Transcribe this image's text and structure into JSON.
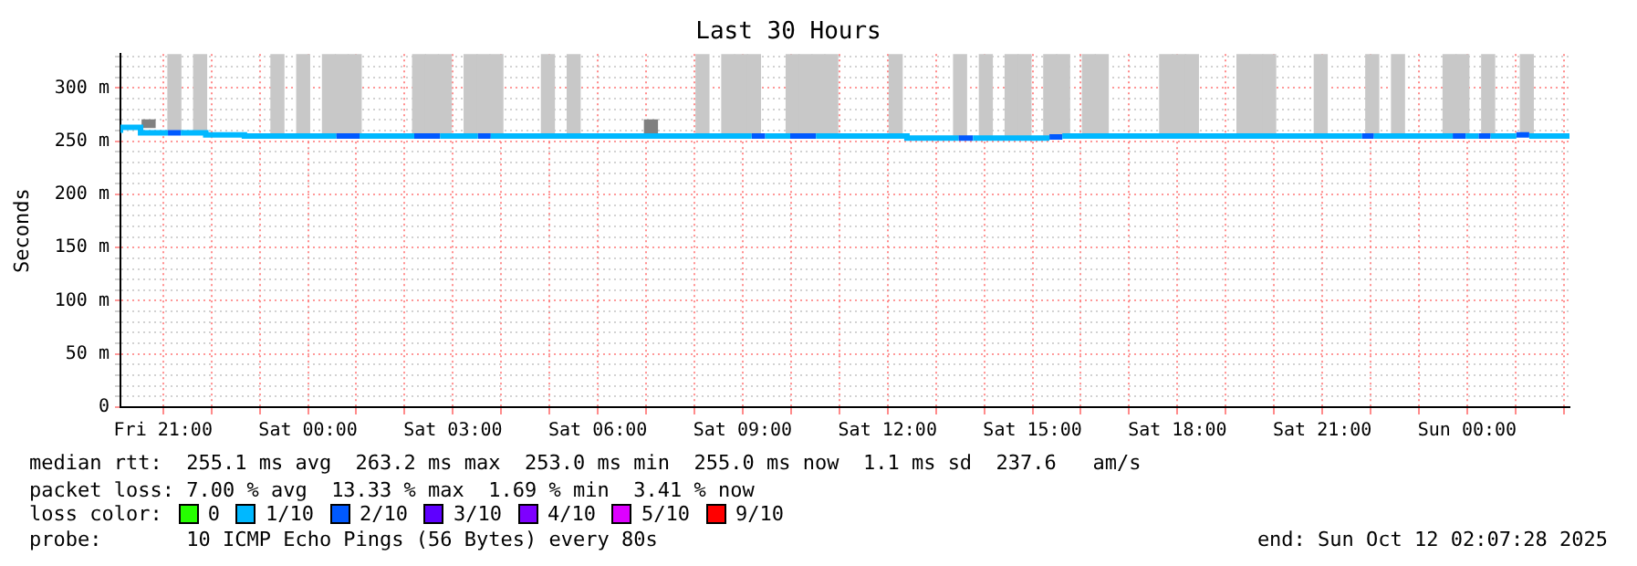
{
  "chart_data": {
    "type": "step",
    "title": "Last 30 Hours",
    "ylabel": "Seconds",
    "legend_title": "loss color:",
    "legend": "bottom",
    "grid": true,
    "line_style": "solid",
    "marker": "none",
    "xlim": [
      "2025-10-10T20:07",
      "2025-10-12T02:07"
    ],
    "xticks": [
      {
        "value": "2025-10-10T21:00",
        "label": "Fri 21:00"
      },
      {
        "value": "2025-10-10T22:00",
        "label": null
      },
      {
        "value": "2025-10-10T23:00",
        "label": null
      },
      {
        "value": "2025-10-11T00:00",
        "label": "Sat 00:00"
      },
      {
        "value": "2025-10-11T01:00",
        "label": null
      },
      {
        "value": "2025-10-11T02:00",
        "label": null
      },
      {
        "value": "2025-10-11T03:00",
        "label": "Sat 03:00"
      },
      {
        "value": "2025-10-11T04:00",
        "label": null
      },
      {
        "value": "2025-10-11T05:00",
        "label": null
      },
      {
        "value": "2025-10-11T06:00",
        "label": "Sat 06:00"
      },
      {
        "value": "2025-10-11T07:00",
        "label": null
      },
      {
        "value": "2025-10-11T08:00",
        "label": null
      },
      {
        "value": "2025-10-11T09:00",
        "label": "Sat 09:00"
      },
      {
        "value": "2025-10-11T10:00",
        "label": null
      },
      {
        "value": "2025-10-11T11:00",
        "label": null
      },
      {
        "value": "2025-10-11T12:00",
        "label": "Sat 12:00"
      },
      {
        "value": "2025-10-11T13:00",
        "label": null
      },
      {
        "value": "2025-10-11T14:00",
        "label": null
      },
      {
        "value": "2025-10-11T15:00",
        "label": "Sat 15:00"
      },
      {
        "value": "2025-10-11T16:00",
        "label": null
      },
      {
        "value": "2025-10-11T17:00",
        "label": null
      },
      {
        "value": "2025-10-11T18:00",
        "label": "Sat 18:00"
      },
      {
        "value": "2025-10-11T19:00",
        "label": null
      },
      {
        "value": "2025-10-11T20:00",
        "label": null
      },
      {
        "value": "2025-10-11T21:00",
        "label": "Sat 21:00"
      },
      {
        "value": "2025-10-11T22:00",
        "label": null
      },
      {
        "value": "2025-10-11T23:00",
        "label": null
      },
      {
        "value": "2025-10-12T00:00",
        "label": "Sun 00:00"
      },
      {
        "value": "2025-10-12T01:00",
        "label": null
      },
      {
        "value": "2025-10-12T02:00",
        "label": null
      }
    ],
    "ylim": [
      0,
      332
    ],
    "yticks": [
      0,
      {
        "value": 10,
        "label": null
      },
      {
        "value": 20,
        "label": null
      },
      {
        "value": 30,
        "label": null
      },
      {
        "value": 40,
        "label": null
      },
      {
        "value": 50,
        "label": "50 m"
      },
      {
        "value": 60,
        "label": null
      },
      {
        "value": 70,
        "label": null
      },
      {
        "value": 80,
        "label": null
      },
      {
        "value": 90,
        "label": null
      },
      {
        "value": 100,
        "label": "100 m"
      },
      {
        "value": 110,
        "label": null
      },
      {
        "value": 120,
        "label": null
      },
      {
        "value": 130,
        "label": null
      },
      {
        "value": 140,
        "label": null
      },
      {
        "value": 150,
        "label": "150 m"
      },
      {
        "value": 160,
        "label": null
      },
      {
        "value": 170,
        "label": null
      },
      {
        "value": 180,
        "label": null
      },
      {
        "value": 190,
        "label": null
      },
      {
        "value": 200,
        "label": "200 m"
      },
      {
        "value": 210,
        "label": null
      },
      {
        "value": 220,
        "label": null
      },
      {
        "value": 230,
        "label": null
      },
      {
        "value": 240,
        "label": null
      },
      {
        "value": 250,
        "label": "250 m"
      },
      {
        "value": 260,
        "label": null
      },
      {
        "value": 270,
        "label": null
      },
      {
        "value": 280,
        "label": null
      },
      {
        "value": 290,
        "label": null
      },
      {
        "value": 300,
        "label": "300 m"
      },
      {
        "value": 310,
        "label": null
      },
      {
        "value": 320,
        "label": null
      },
      {
        "value": 330,
        "label": null
      }
    ],
    "series": [
      {
        "name": "0",
        "color": "#26ff00"
      },
      {
        "name": "1/10",
        "color": "#00b8ff",
        "x": [
          "2025-10-10T20:07",
          "2025-10-10T20:32",
          "2025-10-10T20:50",
          "2025-10-10T21:06",
          null,
          "2025-10-10T21:22",
          "2025-10-10T21:38",
          "2025-10-10T21:53",
          "2025-10-10T22:41",
          "2025-10-10T23:16",
          "2025-10-10T23:31",
          "2025-10-10T23:47",
          "2025-10-11T00:03",
          "2025-10-11T00:19",
          "2025-10-11T00:35",
          null,
          "2025-10-11T01:04",
          "2025-10-11T02:12",
          null,
          "2025-10-11T02:44",
          "2025-10-11T02:59",
          "2025-10-11T03:16",
          "2025-10-11T03:31",
          null,
          "2025-10-11T03:47",
          "2025-10-11T04:05",
          "2025-10-11T04:53",
          "2025-10-11T05:09",
          "2025-10-11T05:25",
          "2025-10-11T05:41",
          "2025-10-11T07:02",
          "2025-10-11T07:18",
          "2025-10-11T08:06",
          "2025-10-11T08:22",
          "2025-10-11T08:37",
          "2025-10-11T09:11",
          null,
          "2025-10-11T09:28",
          "2025-10-11T09:59",
          null,
          "2025-10-11T10:31",
          "2025-10-11T11:02",
          "2025-10-11T12:08",
          "2025-10-11T12:24",
          "2025-10-11T13:10",
          "2025-10-11T13:28",
          null,
          "2025-10-11T13:46",
          "2025-10-11T14:02",
          "2025-10-11T14:17",
          "2025-10-11T14:34",
          "2025-10-11T15:05",
          "2025-10-11T15:21",
          null,
          "2025-10-11T15:37",
          "2025-10-11T15:53",
          "2025-10-11T16:11",
          "2025-10-11T16:43",
          "2025-10-11T17:46",
          "2025-10-11T18:36",
          "2025-10-11T19:08",
          "2025-10-11T19:55",
          "2025-10-11T20:43",
          "2025-10-11T21:01",
          "2025-10-11T21:49",
          null,
          "2025-10-11T22:04",
          "2025-10-11T22:20",
          "2025-10-11T22:36",
          "2025-10-11T23:26",
          "2025-10-11T23:42",
          null,
          "2025-10-11T23:58",
          "2025-10-12T00:14",
          null,
          "2025-10-12T00:29",
          "2025-10-12T01:01",
          null,
          "2025-10-12T01:17",
          "2025-10-12T02:07"
        ],
        "values": [
          258,
          263,
          258,
          258,
          null,
          258,
          258,
          258,
          256,
          255,
          255,
          255,
          255,
          255,
          255,
          null,
          255,
          255,
          null,
          255,
          255,
          255,
          255,
          null,
          255,
          255,
          255,
          255,
          255,
          255,
          255,
          255,
          255,
          255,
          255,
          255,
          null,
          255,
          255,
          null,
          255,
          255,
          255,
          255,
          253,
          253,
          null,
          253,
          253,
          253,
          253,
          253,
          253,
          null,
          255,
          255,
          255,
          255,
          255,
          255,
          255,
          255,
          255,
          255,
          255,
          null,
          255,
          255,
          255,
          255,
          255,
          null,
          255,
          255,
          null,
          255,
          255,
          null,
          255,
          255
        ]
      },
      {
        "name": "2/10",
        "color": "#0059ff",
        "x": [
          "2025-10-10T21:06",
          "2025-10-10T21:22",
          null,
          "2025-10-11T00:35",
          "2025-10-11T01:04",
          null,
          "2025-10-11T02:12",
          "2025-10-11T02:44",
          null,
          "2025-10-11T03:31",
          "2025-10-11T03:47",
          null,
          "2025-10-11T09:11",
          "2025-10-11T09:28",
          null,
          "2025-10-11T09:59",
          "2025-10-11T10:31",
          null,
          "2025-10-11T13:28",
          "2025-10-11T13:46",
          null,
          "2025-10-11T15:21",
          "2025-10-11T15:37",
          null,
          "2025-10-11T21:49",
          "2025-10-11T22:04",
          null,
          "2025-10-11T23:42",
          "2025-10-11T23:58",
          null,
          "2025-10-12T00:14",
          "2025-10-12T00:29",
          null,
          "2025-10-12T01:01",
          "2025-10-12T01:17"
        ],
        "values": [
          258,
          258,
          null,
          255,
          255,
          null,
          255,
          255,
          null,
          255,
          255,
          null,
          255,
          255,
          null,
          255,
          255,
          null,
          253,
          253,
          null,
          254,
          254,
          null,
          255,
          255,
          null,
          255,
          255,
          null,
          255,
          255,
          null,
          256,
          256
        ]
      },
      {
        "name": "3/10",
        "color": "#5e00ff"
      },
      {
        "name": "4/10",
        "color": "#7e00ff"
      },
      {
        "name": "5/10",
        "color": "#dd00ff"
      },
      {
        "name": "9/10",
        "color": "#ff0000"
      },
      {
        "type": "bar",
        "colors": [
          "#808080",
          "#c8c8c8",
          "#c8c8c8",
          "#c8c8c8",
          "#c8c8c8",
          "#c8c8c8",
          "#c8c8c8",
          "#c8c8c8",
          "#c8c8c8",
          "#c8c8c8",
          "#c8c8c8",
          "#c8c8c8",
          "#c8c8c8",
          "#c8c8c8",
          "#c8c8c8",
          "#c8c8c8",
          "#808080",
          "#c8c8c8",
          "#c8c8c8",
          "#c8c8c8",
          "#c8c8c8",
          "#c8c8c8",
          "#c8c8c8",
          "#c8c8c8",
          "#c8c8c8",
          "#c8c8c8",
          "#c8c8c8",
          "#c8c8c8",
          "#c8c8c8",
          "#c8c8c8",
          "#c8c8c8",
          "#c8c8c8",
          "#c8c8c8",
          "#c8c8c8",
          "#c8c8c8",
          "#c8c8c8",
          "#c8c8c8",
          "#c8c8c8",
          "#c8c8c8",
          "#c8c8c8",
          "#c8c8c8",
          "#c8c8c8",
          "#c8c8c8",
          "#c8c8c8",
          "#c8c8c8",
          "#c8c8c8",
          "#c8c8c8"
        ],
        "x": [
          "2025-10-10T20:42",
          "2025-10-10T21:14",
          "2025-10-10T21:46",
          "2025-10-10T23:22",
          "2025-10-10T23:54",
          "2025-10-11T00:26",
          "2025-10-11T00:42",
          "2025-10-11T00:58",
          "2025-10-11T02:18",
          "2025-10-11T02:34",
          "2025-10-11T02:50",
          "2025-10-11T03:22",
          "2025-10-11T03:38",
          "2025-10-11T03:54",
          "2025-10-11T04:58",
          "2025-10-11T05:30",
          "2025-10-11T07:06",
          "2025-10-11T08:10",
          "2025-10-11T08:42",
          "2025-10-11T08:58",
          "2025-10-11T09:14",
          "2025-10-11T10:02",
          "2025-10-11T10:18",
          "2025-10-11T10:34",
          "2025-10-11T10:50",
          "2025-10-11T12:10",
          "2025-10-11T13:30",
          "2025-10-11T14:02",
          "2025-10-11T14:34",
          "2025-10-11T14:50",
          "2025-10-11T15:22",
          "2025-10-11T15:38",
          "2025-10-11T16:10",
          "2025-10-11T16:26",
          "2025-10-11T17:46",
          "2025-10-11T18:02",
          "2025-10-11T18:18",
          "2025-10-11T19:22",
          "2025-10-11T19:38",
          "2025-10-11T19:54",
          "2025-10-11T20:58",
          "2025-10-11T22:02",
          "2025-10-11T22:34",
          "2025-10-11T23:38",
          "2025-10-11T23:54",
          "2025-10-12T00:26",
          "2025-10-12T01:14"
        ],
        "base": [
          263,
          258,
          258,
          255,
          255,
          255,
          255,
          255,
          255,
          255,
          255,
          255,
          255,
          255,
          255,
          255,
          255,
          255,
          255,
          255,
          255,
          255,
          255,
          255,
          255,
          255,
          253,
          253,
          253,
          253,
          254,
          255,
          255,
          255,
          255,
          255,
          255,
          255,
          255,
          255,
          255,
          255,
          255,
          255,
          255,
          255,
          256
        ],
        "values": [
          7,
          74,
          74,
          77,
          77,
          77,
          77,
          77,
          77,
          77,
          77,
          77,
          77,
          77,
          77,
          77,
          15,
          77,
          77,
          77,
          77,
          77,
          77,
          77,
          77,
          77,
          79,
          79,
          79,
          79,
          78,
          77,
          77,
          77,
          77,
          77,
          77,
          77,
          77,
          77,
          77,
          77,
          77,
          77,
          77,
          77,
          76
        ]
      }
    ],
    "annotations": [
      "median rtt:  255.1 ms avg  263.2 ms max  253.0 ms min  255.0 ms now  1.1 ms sd  237.6   am/s",
      "packet loss: 7.00 % avg  13.33 % max  1.69 % min  3.41 % now",
      "probe:       10 ICMP Echo Pings (56 Bytes) every 80s",
      "end: Sun Oct 12 02:07:28 2025"
    ]
  }
}
